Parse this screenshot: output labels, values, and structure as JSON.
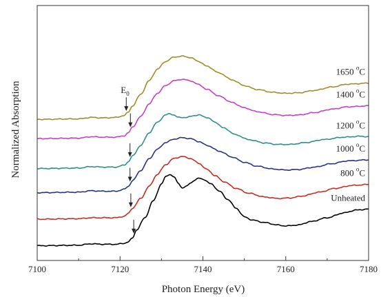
{
  "chart_data": {
    "type": "line",
    "xlabel": "Photon Energy (eV)",
    "ylabel": "Normalized Absorption",
    "xlim": [
      7100,
      7180
    ],
    "xticks": [
      7100,
      7120,
      7140,
      7160,
      7180
    ],
    "y_ticks_shown": false,
    "grid": false,
    "legend": "none (labels placed beside each curve)",
    "annotation": {
      "text": "E",
      "subscript": "0",
      "x": 7121.5
    },
    "series": [
      {
        "name": "Unheated",
        "label_text": "Unheated",
        "label_sup": "",
        "label_suffix": "",
        "color": "#000000",
        "offset": 0.0,
        "edge_x": 7123.3,
        "points": [
          [
            7100,
            0.02
          ],
          [
            7110,
            0.03
          ],
          [
            7113,
            0.06
          ],
          [
            7116,
            0.05
          ],
          [
            7119,
            0.05
          ],
          [
            7121,
            0.07
          ],
          [
            7122,
            0.1
          ],
          [
            7123,
            0.18
          ],
          [
            7124,
            0.35
          ],
          [
            7126,
            0.6
          ],
          [
            7128,
            0.95
          ],
          [
            7130,
            1.3
          ],
          [
            7131,
            1.45
          ],
          [
            7132,
            1.5
          ],
          [
            7133,
            1.45
          ],
          [
            7134,
            1.32
          ],
          [
            7135,
            1.22
          ],
          [
            7136,
            1.25
          ],
          [
            7137,
            1.32
          ],
          [
            7138,
            1.38
          ],
          [
            7139,
            1.42
          ],
          [
            7140,
            1.4
          ],
          [
            7142,
            1.3
          ],
          [
            7144,
            1.15
          ],
          [
            7146,
            0.98
          ],
          [
            7148,
            0.8
          ],
          [
            7150,
            0.62
          ],
          [
            7152,
            0.55
          ],
          [
            7155,
            0.5
          ],
          [
            7158,
            0.45
          ],
          [
            7160,
            0.43
          ],
          [
            7163,
            0.45
          ],
          [
            7166,
            0.52
          ],
          [
            7170,
            0.6
          ],
          [
            7174,
            0.7
          ],
          [
            7177,
            0.76
          ],
          [
            7180,
            0.78
          ]
        ]
      },
      {
        "name": "800 °C",
        "label_text": "800 ",
        "label_sup": "o",
        "label_suffix": "C",
        "color": "#cc2a1e",
        "offset": 0.55,
        "edge_x": 7122.6,
        "points": [
          [
            7100,
            0.02
          ],
          [
            7110,
            0.03
          ],
          [
            7113,
            0.05
          ],
          [
            7116,
            0.05
          ],
          [
            7119,
            0.05
          ],
          [
            7121,
            0.08
          ],
          [
            7122,
            0.14
          ],
          [
            7123,
            0.25
          ],
          [
            7125,
            0.45
          ],
          [
            7127,
            0.7
          ],
          [
            7129,
            0.95
          ],
          [
            7131,
            1.15
          ],
          [
            7133,
            1.28
          ],
          [
            7135,
            1.32
          ],
          [
            7137,
            1.28
          ],
          [
            7139,
            1.18
          ],
          [
            7141,
            1.05
          ],
          [
            7143,
            0.92
          ],
          [
            7145,
            0.8
          ],
          [
            7148,
            0.66
          ],
          [
            7151,
            0.56
          ],
          [
            7155,
            0.48
          ],
          [
            7158,
            0.45
          ],
          [
            7161,
            0.46
          ],
          [
            7164,
            0.5
          ],
          [
            7168,
            0.58
          ],
          [
            7172,
            0.66
          ],
          [
            7176,
            0.72
          ],
          [
            7180,
            0.74
          ]
        ]
      },
      {
        "name": "1000 °C",
        "label_text": "1000 ",
        "label_sup": "o",
        "label_suffix": "C",
        "color": "#2a2f8a",
        "offset": 1.1,
        "edge_x": 7122.4,
        "points": [
          [
            7100,
            0.02
          ],
          [
            7110,
            0.03
          ],
          [
            7113,
            0.06
          ],
          [
            7116,
            0.05
          ],
          [
            7119,
            0.05
          ],
          [
            7121,
            0.09
          ],
          [
            7122,
            0.15
          ],
          [
            7123,
            0.27
          ],
          [
            7125,
            0.48
          ],
          [
            7127,
            0.72
          ],
          [
            7129,
            0.92
          ],
          [
            7131,
            1.06
          ],
          [
            7133,
            1.13
          ],
          [
            7135,
            1.16
          ],
          [
            7137,
            1.14
          ],
          [
            7139,
            1.08
          ],
          [
            7141,
            1.0
          ],
          [
            7144,
            0.88
          ],
          [
            7147,
            0.76
          ],
          [
            7150,
            0.65
          ],
          [
            7153,
            0.57
          ],
          [
            7157,
            0.51
          ],
          [
            7160,
            0.49
          ],
          [
            7163,
            0.5
          ],
          [
            7167,
            0.55
          ],
          [
            7171,
            0.62
          ],
          [
            7175,
            0.68
          ],
          [
            7180,
            0.7
          ]
        ]
      },
      {
        "name": "1200 °C",
        "label_text": "1200 ",
        "label_sup": "o",
        "label_suffix": "C",
        "color": "#2e8f8a",
        "offset": 1.6,
        "edge_x": 7122.4,
        "points": [
          [
            7100,
            0.02
          ],
          [
            7110,
            0.03
          ],
          [
            7113,
            0.06
          ],
          [
            7116,
            0.05
          ],
          [
            7119,
            0.05
          ],
          [
            7121,
            0.09
          ],
          [
            7122,
            0.16
          ],
          [
            7123,
            0.28
          ],
          [
            7125,
            0.5
          ],
          [
            7127,
            0.76
          ],
          [
            7129,
            0.98
          ],
          [
            7131,
            1.13
          ],
          [
            7132,
            1.16
          ],
          [
            7133,
            1.13
          ],
          [
            7134,
            1.08
          ],
          [
            7136,
            1.08
          ],
          [
            7138,
            1.12
          ],
          [
            7139,
            1.13
          ],
          [
            7141,
            1.08
          ],
          [
            7143,
            0.98
          ],
          [
            7145,
            0.86
          ],
          [
            7148,
            0.72
          ],
          [
            7151,
            0.62
          ],
          [
            7155,
            0.55
          ],
          [
            7158,
            0.52
          ],
          [
            7161,
            0.52
          ],
          [
            7165,
            0.56
          ],
          [
            7169,
            0.62
          ],
          [
            7174,
            0.67
          ],
          [
            7178,
            0.69
          ],
          [
            7180,
            0.68
          ]
        ]
      },
      {
        "name": "1400 °C",
        "label_text": "1400 ",
        "label_sup": "o",
        "label_suffix": "C",
        "color": "#c63ec9",
        "offset": 2.22,
        "edge_x": 7122.5,
        "points": [
          [
            7100,
            0.02
          ],
          [
            7110,
            0.03
          ],
          [
            7113,
            0.06
          ],
          [
            7116,
            0.05
          ],
          [
            7119,
            0.05
          ],
          [
            7121,
            0.08
          ],
          [
            7122,
            0.14
          ],
          [
            7123,
            0.26
          ],
          [
            7125,
            0.48
          ],
          [
            7127,
            0.74
          ],
          [
            7129,
            0.96
          ],
          [
            7131,
            1.12
          ],
          [
            7133,
            1.22
          ],
          [
            7135,
            1.25
          ],
          [
            7137,
            1.22
          ],
          [
            7139,
            1.14
          ],
          [
            7141,
            1.04
          ],
          [
            7144,
            0.9
          ],
          [
            7147,
            0.77
          ],
          [
            7150,
            0.66
          ],
          [
            7153,
            0.58
          ],
          [
            7157,
            0.52
          ],
          [
            7160,
            0.5
          ],
          [
            7163,
            0.51
          ],
          [
            7167,
            0.56
          ],
          [
            7171,
            0.63
          ],
          [
            7175,
            0.68
          ],
          [
            7180,
            0.7
          ]
        ]
      },
      {
        "name": "1650 °C",
        "label_text": "1650 ",
        "label_sup": "o",
        "label_suffix": "C",
        "color": "#9b8f2a",
        "offset": 2.62,
        "edge_x": 7121.5,
        "points": [
          [
            7100,
            0.02
          ],
          [
            7110,
            0.03
          ],
          [
            7113,
            0.06
          ],
          [
            7116,
            0.05
          ],
          [
            7119,
            0.06
          ],
          [
            7121,
            0.1
          ],
          [
            7122,
            0.17
          ],
          [
            7123,
            0.3
          ],
          [
            7125,
            0.54
          ],
          [
            7127,
            0.82
          ],
          [
            7129,
            1.06
          ],
          [
            7131,
            1.22
          ],
          [
            7133,
            1.31
          ],
          [
            7135,
            1.33
          ],
          [
            7137,
            1.3
          ],
          [
            7139,
            1.22
          ],
          [
            7141,
            1.12
          ],
          [
            7144,
            0.98
          ],
          [
            7147,
            0.84
          ],
          [
            7150,
            0.72
          ],
          [
            7153,
            0.64
          ],
          [
            7157,
            0.58
          ],
          [
            7160,
            0.56
          ],
          [
            7163,
            0.57
          ],
          [
            7167,
            0.62
          ],
          [
            7171,
            0.69
          ],
          [
            7175,
            0.75
          ],
          [
            7180,
            0.77
          ]
        ]
      }
    ]
  }
}
